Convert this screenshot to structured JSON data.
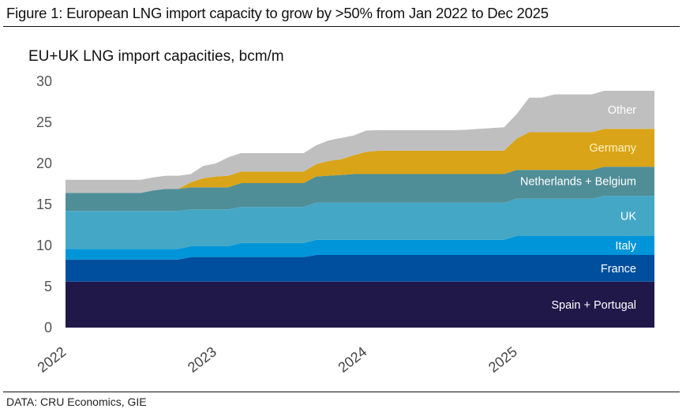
{
  "figure": {
    "title": "Figure 1: European LNG import capacity to grow by >50% from Jan 2022 to Dec 2025",
    "source": "DATA: CRU Economics, GIE"
  },
  "chart_data": {
    "type": "area",
    "stacked": true,
    "title": "EU+UK LNG import capacities, bcm/m",
    "xlabel": "",
    "ylabel": "bcm/m",
    "ylim": [
      0,
      30
    ],
    "yticks": [
      0,
      5,
      10,
      15,
      20,
      25,
      30
    ],
    "xticks": [
      "2022",
      "2023",
      "2024",
      "2025"
    ],
    "x_start": "Jan 2022",
    "x_end": "Dec 2025",
    "x_frequency": "monthly",
    "grid": false,
    "legend": "inline-right",
    "series": [
      {
        "name": "Spain + Portugal",
        "color": "#201849",
        "values": [
          5.6,
          5.6,
          5.6,
          5.6,
          5.6,
          5.6,
          5.6,
          5.6,
          5.6,
          5.6,
          5.6,
          5.6,
          5.6,
          5.6,
          5.6,
          5.6,
          5.6,
          5.6,
          5.6,
          5.6,
          5.6,
          5.6,
          5.6,
          5.6,
          5.6,
          5.6,
          5.6,
          5.6,
          5.6,
          5.6,
          5.6,
          5.6,
          5.6,
          5.6,
          5.6,
          5.6,
          5.6,
          5.6,
          5.6,
          5.6,
          5.6,
          5.6,
          5.6,
          5.6,
          5.6,
          5.6,
          5.6,
          5.6
        ]
      },
      {
        "name": "France",
        "color": "#004f9e",
        "values": [
          2.7,
          2.7,
          2.7,
          2.7,
          2.7,
          2.7,
          2.7,
          2.7,
          2.7,
          2.7,
          3.0,
          3.0,
          3.0,
          3.0,
          3.0,
          3.0,
          3.0,
          3.0,
          3.0,
          3.0,
          3.25,
          3.25,
          3.25,
          3.25,
          3.25,
          3.25,
          3.25,
          3.25,
          3.25,
          3.25,
          3.25,
          3.25,
          3.25,
          3.25,
          3.25,
          3.25,
          3.25,
          3.25,
          3.25,
          3.25,
          3.25,
          3.25,
          3.25,
          3.25,
          3.25,
          3.25,
          3.25,
          3.25
        ]
      },
      {
        "name": "Italy",
        "color": "#0095d9",
        "values": [
          1.3,
          1.3,
          1.3,
          1.3,
          1.3,
          1.3,
          1.3,
          1.3,
          1.3,
          1.3,
          1.3,
          1.3,
          1.3,
          1.3,
          1.7,
          1.7,
          1.7,
          1.7,
          1.7,
          1.7,
          1.85,
          1.85,
          1.85,
          1.85,
          1.85,
          1.85,
          1.85,
          1.85,
          1.85,
          1.85,
          1.85,
          1.85,
          1.85,
          1.85,
          1.85,
          1.85,
          2.3,
          2.3,
          2.3,
          2.3,
          2.3,
          2.3,
          2.3,
          2.3,
          2.3,
          2.3,
          2.3,
          2.3
        ]
      },
      {
        "name": "UK",
        "color": "#45a7c6",
        "values": [
          4.6,
          4.6,
          4.6,
          4.6,
          4.6,
          4.6,
          4.6,
          4.6,
          4.6,
          4.6,
          4.5,
          4.5,
          4.5,
          4.5,
          4.4,
          4.4,
          4.4,
          4.4,
          4.4,
          4.4,
          4.5,
          4.5,
          4.5,
          4.5,
          4.5,
          4.5,
          4.5,
          4.5,
          4.5,
          4.5,
          4.5,
          4.5,
          4.5,
          4.5,
          4.5,
          4.5,
          4.55,
          4.55,
          4.55,
          4.55,
          4.55,
          4.55,
          4.55,
          4.9,
          4.9,
          4.9,
          4.9,
          4.9
        ]
      },
      {
        "name": "Netherlands + Belgium",
        "color": "#4f8e97",
        "values": [
          2.2,
          2.2,
          2.2,
          2.2,
          2.2,
          2.2,
          2.2,
          2.5,
          2.7,
          2.7,
          2.7,
          2.7,
          2.7,
          2.7,
          2.9,
          2.9,
          2.9,
          2.9,
          2.9,
          2.9,
          3.2,
          3.3,
          3.4,
          3.5,
          3.5,
          3.5,
          3.5,
          3.5,
          3.5,
          3.5,
          3.5,
          3.5,
          3.5,
          3.5,
          3.5,
          3.5,
          3.5,
          3.5,
          3.5,
          3.5,
          3.5,
          3.5,
          3.5,
          3.55,
          3.55,
          3.55,
          3.55,
          3.55
        ]
      },
      {
        "name": "Germany",
        "color": "#d9a417",
        "values": [
          0,
          0,
          0,
          0,
          0,
          0,
          0,
          0,
          0,
          0,
          0.6,
          1.1,
          1.3,
          1.4,
          1.4,
          1.4,
          1.4,
          1.4,
          1.4,
          1.4,
          1.5,
          1.8,
          1.9,
          2.3,
          2.7,
          2.85,
          2.85,
          2.85,
          2.85,
          2.85,
          2.85,
          2.85,
          2.85,
          2.85,
          2.85,
          2.85,
          3.8,
          4.6,
          4.6,
          4.6,
          4.6,
          4.6,
          4.6,
          4.6,
          4.6,
          4.6,
          4.6,
          4.6
        ]
      },
      {
        "name": "Other",
        "color": "#bfbfbf",
        "values": [
          1.6,
          1.6,
          1.6,
          1.6,
          1.6,
          1.6,
          1.6,
          1.6,
          1.6,
          1.6,
          1.0,
          1.5,
          1.6,
          2.25,
          2.25,
          2.25,
          2.25,
          2.25,
          2.25,
          2.25,
          2.3,
          2.5,
          2.6,
          2.4,
          2.6,
          2.5,
          2.5,
          2.5,
          2.5,
          2.5,
          2.5,
          2.5,
          2.55,
          2.65,
          2.75,
          2.85,
          3.0,
          4.2,
          4.2,
          4.6,
          4.6,
          4.6,
          4.6,
          4.65,
          4.65,
          4.65,
          4.65,
          4.65
        ]
      }
    ]
  }
}
